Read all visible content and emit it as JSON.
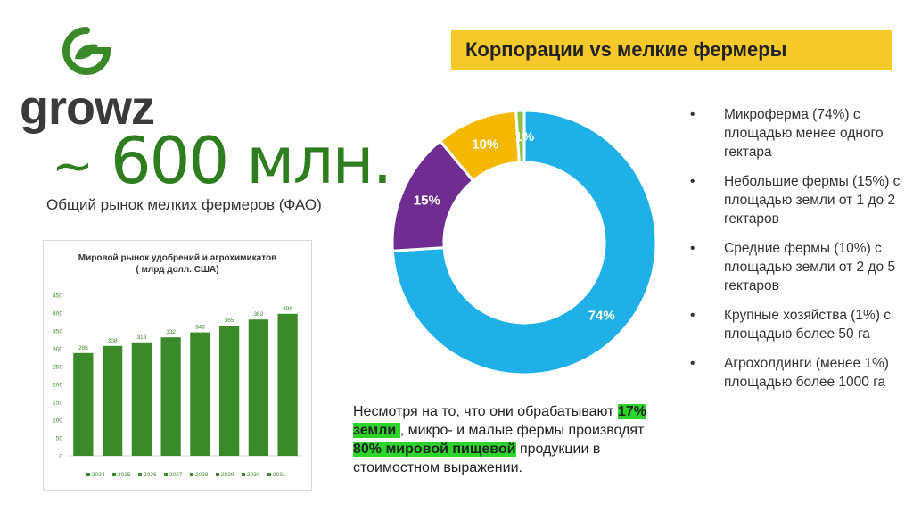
{
  "logo": {
    "text": "growz"
  },
  "headline": {
    "tilde": "~",
    "number": "600 млн.",
    "subtitle": "Общий рынок мелких фермеров (ФАО)"
  },
  "slide_title": "Корпорации vs мелкие фермеры",
  "bullets": [
    "Микроферма (74%) с площадью менее одного гектара",
    "Небольшие фермы (15%) с площадью земли от 1 до 2 гектаров",
    "Средние фермы (10%) с площадью земли от 2 до 5 гектаров",
    "Крупные хозяйства (1%) с площадью более 50 га",
    "Агрохолдинги (менее 1%) площадью более 1000 га"
  ],
  "note": {
    "part1": "Несмотря на то, что они обрабатывают ",
    "hl1": "17% земли ",
    "part2": ", микро- и малые фермы производят ",
    "hl2": "80% мировой пищевой",
    "part3": " продукции в стоимостном выражении."
  },
  "colors": {
    "green": "#3a8a2a",
    "dark_green": "#2e7d1e",
    "yellow": "#f6c92a",
    "blue": "#1fb0e8",
    "purple": "#6f2d91",
    "gold": "#f5b800",
    "light_green": "#8bc34a"
  },
  "chart_data": [
    {
      "type": "bar",
      "title": "Мировой рынок удобрений и агрохимикатов ( млрд долл. США)",
      "categories": [
        "2024",
        "2025",
        "2026",
        "2027",
        "2028",
        "2029",
        "2030",
        "2031"
      ],
      "values": [
        288,
        308,
        318,
        332,
        346,
        365,
        382,
        398
      ],
      "ylim": [
        0,
        450
      ],
      "yticks": [
        0,
        50,
        100,
        150,
        200,
        250,
        300,
        350,
        400,
        450
      ],
      "grid": false,
      "legend": "bottom",
      "color": "#3a8a2a"
    },
    {
      "type": "pie",
      "donut": true,
      "labels": [
        "74%",
        "15%",
        "10%",
        "1%"
      ],
      "values": [
        74,
        15,
        10,
        1
      ],
      "colors": [
        "#1fb0e8",
        "#6f2d91",
        "#f5b800",
        "#8bc34a"
      ]
    }
  ]
}
